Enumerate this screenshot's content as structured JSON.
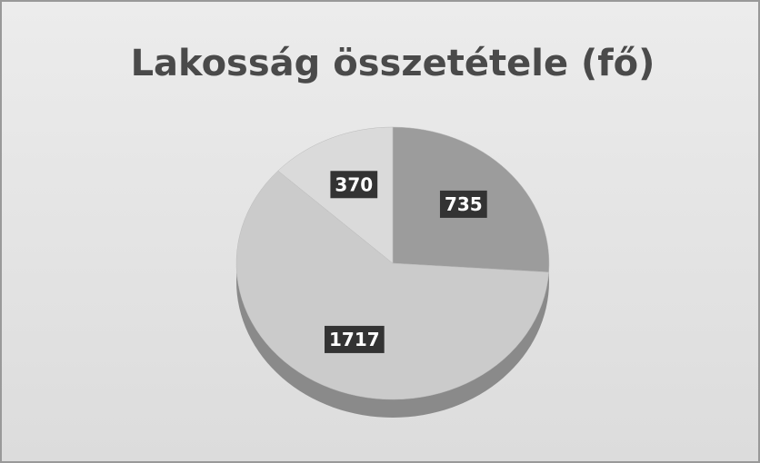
{
  "chart_data": {
    "type": "pie",
    "title": "Lakosság összetétele (fő)",
    "values": [
      735,
      1717,
      370
    ],
    "colors": [
      "#9c9c9c",
      "#cbcbcb",
      "#dadada"
    ]
  }
}
